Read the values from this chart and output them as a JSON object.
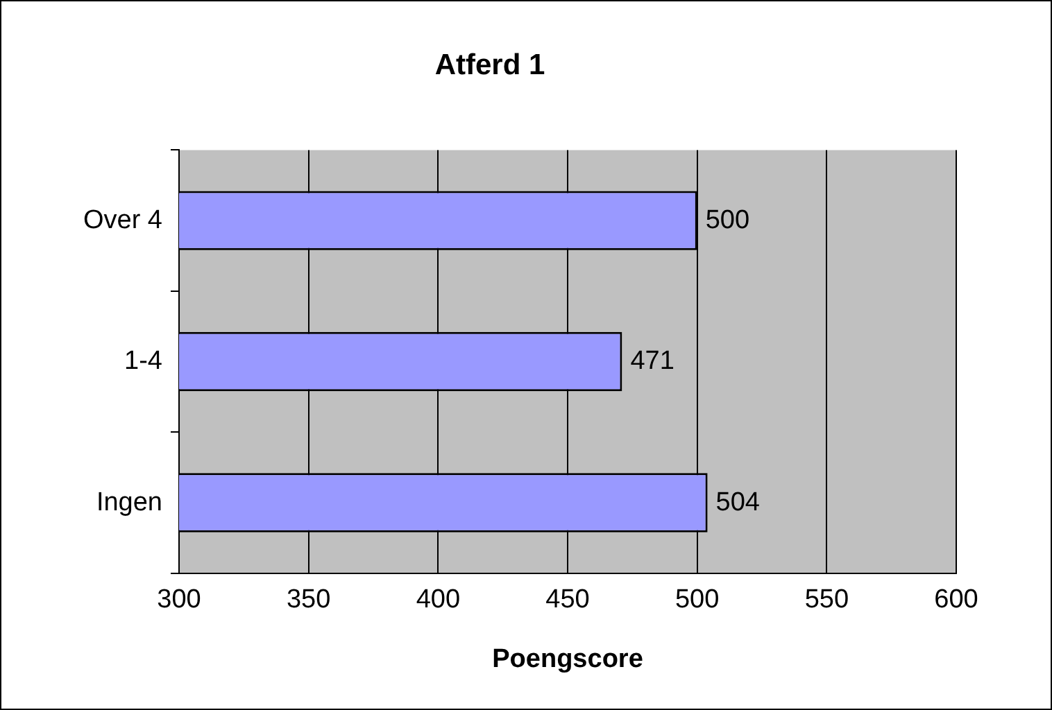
{
  "chart_data": {
    "type": "bar",
    "orientation": "horizontal",
    "title": "Atferd 1",
    "xlabel": "Poengscore",
    "categories": [
      "Over 4",
      "1-4",
      "Ingen"
    ],
    "values": [
      500,
      471,
      504
    ],
    "color": "#9999ff",
    "xlim": [
      300,
      600
    ],
    "xticks": [
      300,
      350,
      400,
      450,
      500,
      550,
      600
    ],
    "grid": "x",
    "data_labels": true
  }
}
